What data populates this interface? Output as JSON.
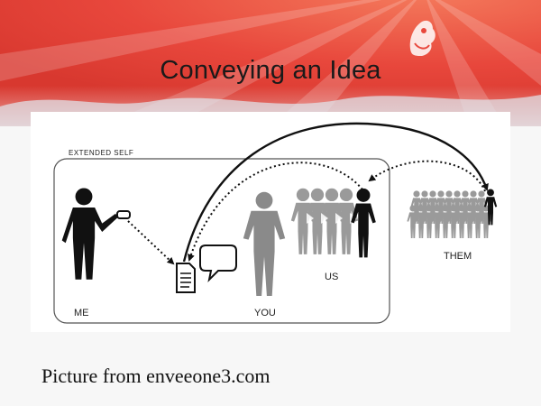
{
  "slide": {
    "title": "Conveying an Idea",
    "caption": "Picture from enveeone3.com"
  },
  "diagram": {
    "region_label": "EXTENDED SELF",
    "labels": {
      "me": "ME",
      "you": "YOU",
      "us": "US",
      "them": "THEM"
    },
    "icons": {
      "sender": "person-icon",
      "message": "message-icon",
      "document": "document-icon",
      "speech": "speech-bubble-icon"
    }
  },
  "colors": {
    "banner_red": "#e8473c",
    "figure_black": "#111111",
    "figure_gray": "#8a8a8a",
    "crowd_gray": "#9a9a9a"
  }
}
